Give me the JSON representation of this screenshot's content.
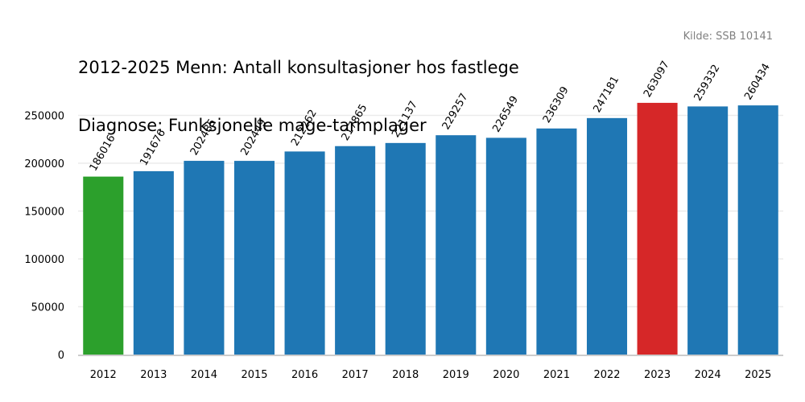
{
  "title_line1": "2012-2025 Menn: Antall konsultasjoner hos fastlege",
  "title_line2": "Diagnose: Funksjonelle mage-tarmplager",
  "source": "Kilde: SSB 10141",
  "colors": {
    "default_bar": "#1f77b4",
    "first_bar": "#2ca02c",
    "max_bar": "#d62728",
    "grid": "#ebebeb",
    "axis": "#cccccc"
  },
  "chart_data": {
    "type": "bar",
    "title": "2012-2025 Menn: Antall konsultasjoner hos fastlege\nDiagnose: Funksjonelle mage-tarmplager",
    "xlabel": "",
    "ylabel": "",
    "categories": [
      "2012",
      "2013",
      "2014",
      "2015",
      "2016",
      "2017",
      "2018",
      "2019",
      "2020",
      "2021",
      "2022",
      "2023",
      "2024",
      "2025"
    ],
    "values": [
      186016,
      191676,
      202485,
      202449,
      212262,
      217865,
      221137,
      229257,
      226549,
      236309,
      247181,
      263097,
      259332,
      260434
    ],
    "yticks": [
      0,
      50000,
      100000,
      150000,
      200000,
      250000
    ],
    "ylim": [
      0,
      285000
    ],
    "grid": true,
    "highlight": {
      "2012": "first",
      "2023": "max"
    }
  }
}
